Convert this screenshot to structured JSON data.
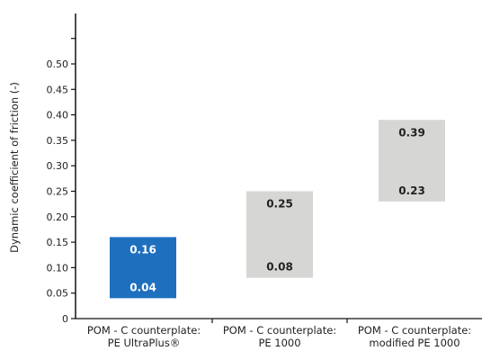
{
  "chart_data": {
    "type": "bar",
    "subtype": "floating-range",
    "ylabel": "Dynamic coefficient of friction (-)",
    "ylim": [
      0,
      0.55
    ],
    "yticks": [
      "0",
      "0.05",
      "0.10",
      "0.15",
      "0.20",
      "0.25",
      "0.30",
      "0.35",
      "0.40",
      "0.45",
      "0.50"
    ],
    "grid": false,
    "categories": [
      [
        "POM - C counterplate:",
        "PE UltraPlus®"
      ],
      [
        "POM - C counterplate:",
        "PE 1000"
      ],
      [
        "POM - C counterplate:",
        "modified PE 1000"
      ]
    ],
    "ranges": [
      {
        "low": 0.04,
        "high": 0.16,
        "low_label": "0.04",
        "high_label": "0.16",
        "color": "#1f6fbf",
        "label_color": "#ffffff"
      },
      {
        "low": 0.08,
        "high": 0.25,
        "low_label": "0.08",
        "high_label": "0.25",
        "color": "#d6d6d4",
        "label_color": "#222222"
      },
      {
        "low": 0.23,
        "high": 0.39,
        "low_label": "0.23",
        "high_label": "0.39",
        "color": "#d6d6d4",
        "label_color": "#222222"
      }
    ]
  }
}
